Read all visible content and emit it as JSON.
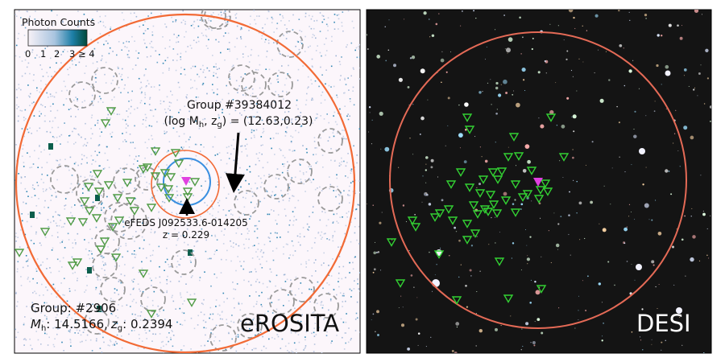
{
  "colorbar": {
    "title": "Photon Counts",
    "ticks": [
      "0",
      "1",
      "2",
      "3 ≥ 4"
    ],
    "colors": [
      "#f7f1f7",
      "#1e7fa8",
      "#004a3a"
    ]
  },
  "left_panel": {
    "label": "eROSITA",
    "group_line1": "Group: #2906",
    "group_line2_m": "M",
    "group_line2_m_sub": "h",
    "group_line2_m_val": ": 14.5166,",
    "group_line2_z": "z",
    "group_line2_z_sub": "g",
    "group_line2_z_val": ": 0.2394",
    "annotation_group_title": "Group #39384012",
    "annotation_group_params": "(log M",
    "annotation_group_params_sub": "h",
    "annotation_group_params_mid": ", z",
    "annotation_group_params_sub2": "g",
    "annotation_group_params_end": ") = (12.63,0.23)",
    "source_name": "eFEDS J092533.6-014205",
    "source_z": "z = 0.229",
    "colors": {
      "background": "#fcf6fb",
      "outer_circle": "#f26a35",
      "inner_circle": "#f26a35",
      "blue_circle": "#3a8fe0",
      "gray_circles": "#9a9a9a",
      "markers": "#4f9b45",
      "bcg_marker": "#e040e0"
    }
  },
  "right_panel": {
    "label": "DESI",
    "colors": {
      "background": "#141414",
      "circle": "#e46a56",
      "markers": "#33d133",
      "bcg_marker": "#e040e0"
    }
  }
}
